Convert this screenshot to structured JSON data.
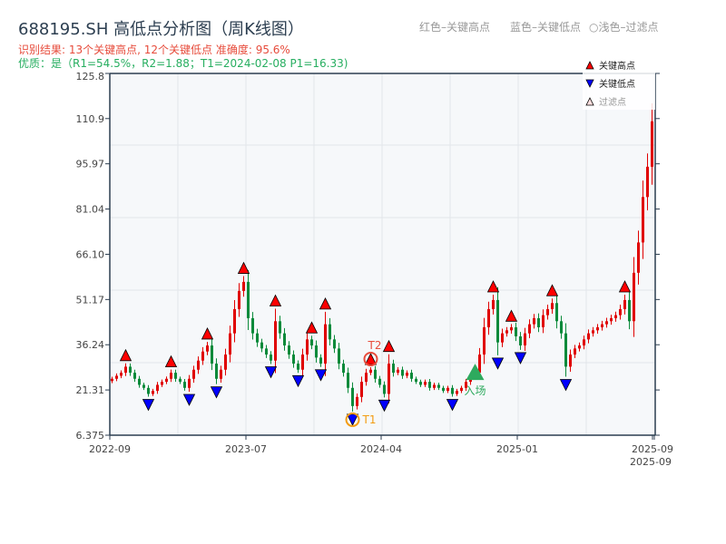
{
  "header": {
    "title": "688195.SH 高低点分析图（周K线图）",
    "result": "识别结果: 13个关键高点, 12个关键低点   准确度: 95.6%",
    "quality": "优质：是（R1=54.5%，R2=1.88；T1=2024-02-08 P1=16.33)",
    "legend_red": "红色–关键高点",
    "legend_blue": "蓝色–关键低点",
    "legend_light": "○浅色–过滤点"
  },
  "colors": {
    "up": "#e00000",
    "down": "#0a8a3a",
    "high_marker": "#ff0000",
    "low_marker": "#0000ff",
    "entry": "#2eaa5e",
    "t1": "#f39c12",
    "t2": "#e74c3c"
  },
  "chart_data": {
    "type": "candlestick",
    "ylim": [
      6.375,
      125.8
    ],
    "yticks": [
      "125.8",
      "110.9",
      "95.97",
      "81.04",
      "66.10",
      "51.17",
      "36.24",
      "21.31",
      "6.375"
    ],
    "xticks": [
      {
        "label": "2022-09",
        "index": 0
      },
      {
        "label": "2023-07",
        "index": 30
      },
      {
        "label": "2024-04",
        "index": 59.8
      },
      {
        "label": "2025-01",
        "index": 89.8
      },
      {
        "label": "2025-09",
        "index": 119.6
      },
      {
        "label": "2025-09",
        "index": 120
      }
    ],
    "closes": [
      25,
      26,
      27,
      29,
      27,
      25,
      23,
      22,
      20,
      21,
      23,
      24,
      25,
      27,
      25,
      24,
      22,
      25,
      28,
      31,
      34,
      36,
      30,
      25,
      28,
      33,
      40,
      48,
      54,
      57,
      45,
      40,
      37,
      35,
      33,
      31,
      44,
      40,
      36,
      33,
      30,
      28,
      33,
      38,
      36,
      32,
      30,
      43,
      38,
      35,
      30,
      27,
      22,
      16,
      19,
      24,
      27,
      28,
      25,
      23,
      20,
      30,
      27,
      28,
      26,
      27,
      25,
      24,
      23,
      24,
      22,
      23,
      22,
      21,
      22,
      20,
      21,
      22,
      24,
      26,
      27,
      33,
      42,
      48,
      51,
      37,
      40,
      41,
      42,
      39,
      36,
      40,
      43,
      45,
      42,
      46,
      48,
      50,
      44,
      40,
      29,
      33,
      35,
      36,
      38,
      40,
      41,
      42,
      43,
      44,
      45,
      46,
      48,
      51,
      44,
      60,
      70,
      85,
      95,
      110
    ],
    "key_highs": [
      3,
      13,
      21,
      29,
      36,
      44,
      47,
      57,
      61,
      84,
      88,
      97,
      113
    ],
    "key_lows": [
      8,
      17,
      23,
      35,
      41,
      46,
      53,
      60,
      75,
      85,
      90,
      100
    ],
    "t1": {
      "index": 53,
      "label": "T1"
    },
    "t2": {
      "index": 57,
      "label": "T2"
    },
    "entry": {
      "index": 80,
      "label": "入场"
    },
    "legend": [
      "关键高点",
      "关键低点",
      "过滤点"
    ],
    "legend_position": "top-right"
  }
}
